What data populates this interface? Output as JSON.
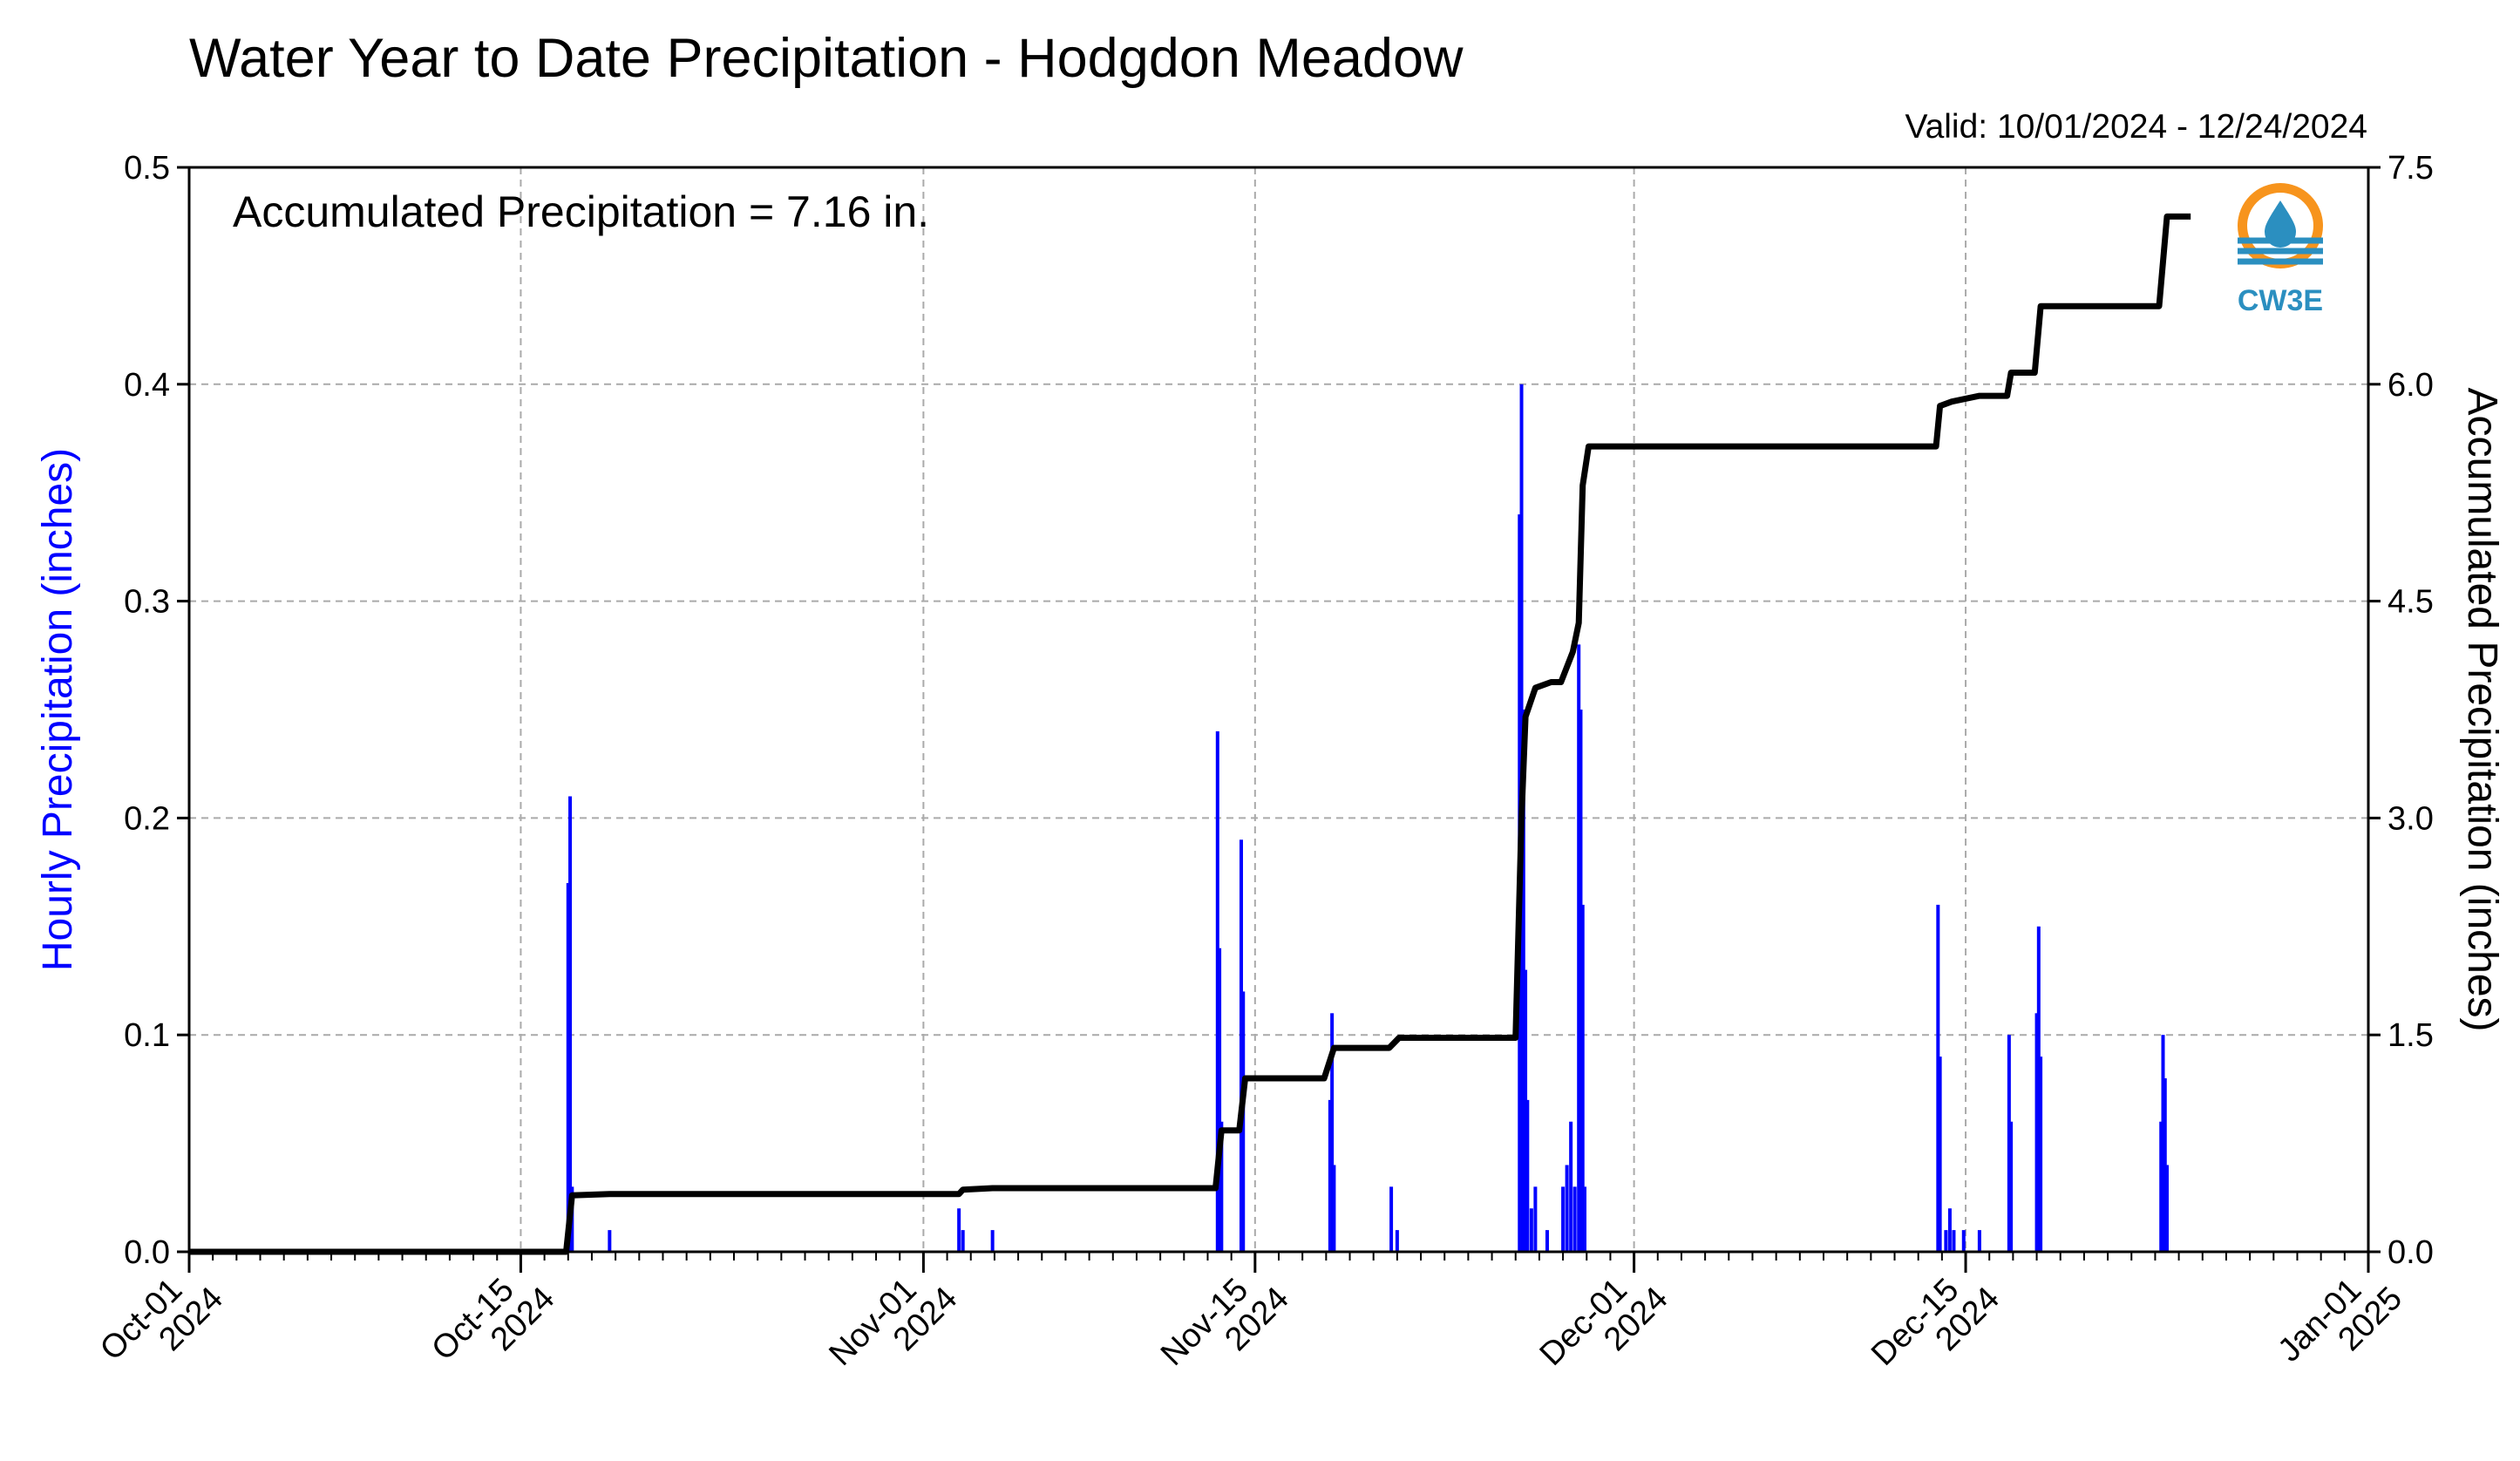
{
  "chart_data": {
    "type": "bar",
    "title": "Water Year to Date Precipitation - Hodgdon Meadow",
    "subtitle": "Valid: 10/01/2024 - 12/24/2024",
    "annotation": "Accumulated Precipitation = 7.16 in.",
    "logo_text": "CW3E",
    "ylabel": "Hourly Precipitation (inches)",
    "y2label": "Accumulated Precipitation (inches)",
    "ylim": [
      0,
      0.5
    ],
    "y2lim": [
      0,
      7.5
    ],
    "xlim": [
      "2024-10-01",
      "2025-01-01"
    ],
    "grid": true,
    "y_ticks": [
      "0.0",
      "0.1",
      "0.2",
      "0.3",
      "0.4",
      "0.5"
    ],
    "y2_ticks": [
      "0.0",
      "1.5",
      "3.0",
      "4.5",
      "6.0",
      "7.5"
    ],
    "x_ticks": [
      {
        "date": "2024-10-01",
        "label1": "Oct-01",
        "label2": "2024"
      },
      {
        "date": "2024-10-15",
        "label1": "Oct-15",
        "label2": "2024"
      },
      {
        "date": "2024-11-01",
        "label1": "Nov-01",
        "label2": "2024"
      },
      {
        "date": "2024-11-15",
        "label1": "Nov-15",
        "label2": "2024"
      },
      {
        "date": "2024-12-01",
        "label1": "Dec-01",
        "label2": "2024"
      },
      {
        "date": "2024-12-15",
        "label1": "Dec-15",
        "label2": "2024"
      },
      {
        "date": "2025-01-01",
        "label1": "Jan-01",
        "label2": "2025"
      }
    ],
    "series": [
      {
        "name": "Hourly Precipitation",
        "type": "bar",
        "color": "#0000ff",
        "points": [
          [
            "2024-10-17 00:00",
            0.17
          ],
          [
            "2024-10-17 02:00",
            0.21
          ],
          [
            "2024-10-17 04:00",
            0.03
          ],
          [
            "2024-10-18 18:00",
            0.01
          ],
          [
            "2024-11-02 12:00",
            0.02
          ],
          [
            "2024-11-02 16:00",
            0.01
          ],
          [
            "2024-11-03 22:00",
            0.01
          ],
          [
            "2024-11-13 10:00",
            0.24
          ],
          [
            "2024-11-13 12:00",
            0.14
          ],
          [
            "2024-11-13 14:00",
            0.06
          ],
          [
            "2024-11-14 10:00",
            0.19
          ],
          [
            "2024-11-14 12:00",
            0.12
          ],
          [
            "2024-11-18 04:00",
            0.07
          ],
          [
            "2024-11-18 06:00",
            0.11
          ],
          [
            "2024-11-18 08:00",
            0.04
          ],
          [
            "2024-11-20 18:00",
            0.03
          ],
          [
            "2024-11-21 00:00",
            0.01
          ],
          [
            "2024-11-26 04:00",
            0.34
          ],
          [
            "2024-11-26 06:00",
            0.4
          ],
          [
            "2024-11-26 08:00",
            0.25
          ],
          [
            "2024-11-26 10:00",
            0.13
          ],
          [
            "2024-11-26 12:00",
            0.07
          ],
          [
            "2024-11-26 16:00",
            0.02
          ],
          [
            "2024-11-26 20:00",
            0.03
          ],
          [
            "2024-11-27 08:00",
            0.01
          ],
          [
            "2024-11-28 00:00",
            0.03
          ],
          [
            "2024-11-28 04:00",
            0.04
          ],
          [
            "2024-11-28 08:00",
            0.06
          ],
          [
            "2024-11-28 12:00",
            0.03
          ],
          [
            "2024-11-28 16:00",
            0.28
          ],
          [
            "2024-11-28 18:00",
            0.25
          ],
          [
            "2024-11-28 20:00",
            0.16
          ],
          [
            "2024-11-28 22:00",
            0.03
          ],
          [
            "2024-12-13 20:00",
            0.16
          ],
          [
            "2024-12-13 22:00",
            0.09
          ],
          [
            "2024-12-14 04:00",
            0.01
          ],
          [
            "2024-12-14 08:00",
            0.02
          ],
          [
            "2024-12-14 12:00",
            0.01
          ],
          [
            "2024-12-14 22:00",
            0.01
          ],
          [
            "2024-12-15 14:00",
            0.01
          ],
          [
            "2024-12-16 20:00",
            0.1
          ],
          [
            "2024-12-16 22:00",
            0.06
          ],
          [
            "2024-12-18 00:00",
            0.11
          ],
          [
            "2024-12-18 02:00",
            0.15
          ],
          [
            "2024-12-18 04:00",
            0.09
          ],
          [
            "2024-12-23 06:00",
            0.06
          ],
          [
            "2024-12-23 08:00",
            0.1
          ],
          [
            "2024-12-23 10:00",
            0.08
          ],
          [
            "2024-12-23 12:00",
            0.04
          ]
        ]
      },
      {
        "name": "Accumulated Precipitation",
        "type": "line",
        "color": "#000000",
        "points": [
          [
            "2024-10-01 00:00",
            0.0
          ],
          [
            "2024-10-16 22:00",
            0.0
          ],
          [
            "2024-10-17 04:00",
            0.39
          ],
          [
            "2024-10-18 18:00",
            0.4
          ],
          [
            "2024-11-02 12:00",
            0.4
          ],
          [
            "2024-11-02 16:00",
            0.43
          ],
          [
            "2024-11-03 22:00",
            0.44
          ],
          [
            "2024-11-13 08:00",
            0.44
          ],
          [
            "2024-11-13 14:00",
            0.84
          ],
          [
            "2024-11-14 08:00",
            0.84
          ],
          [
            "2024-11-14 14:00",
            1.2
          ],
          [
            "2024-11-17 22:00",
            1.2
          ],
          [
            "2024-11-18 08:00",
            1.41
          ],
          [
            "2024-11-20 16:00",
            1.41
          ],
          [
            "2024-11-21 02:00",
            1.48
          ],
          [
            "2024-11-26 00:00",
            1.48
          ],
          [
            "2024-11-26 06:00",
            3.0
          ],
          [
            "2024-11-26 10:00",
            3.7
          ],
          [
            "2024-11-26 20:00",
            3.9
          ],
          [
            "2024-11-27 12:00",
            3.94
          ],
          [
            "2024-11-27 22:00",
            3.94
          ],
          [
            "2024-11-28 10:00",
            4.15
          ],
          [
            "2024-11-28 16:00",
            4.35
          ],
          [
            "2024-11-28 20:00",
            5.3
          ],
          [
            "2024-11-29 02:00",
            5.57
          ],
          [
            "2024-12-13 18:00",
            5.57
          ],
          [
            "2024-12-13 22:00",
            5.85
          ],
          [
            "2024-12-14 10:00",
            5.88
          ],
          [
            "2024-12-15 14:00",
            5.92
          ],
          [
            "2024-12-16 18:00",
            5.92
          ],
          [
            "2024-12-16 22:00",
            6.08
          ],
          [
            "2024-12-17 22:00",
            6.08
          ],
          [
            "2024-12-18 04:00",
            6.54
          ],
          [
            "2024-12-23 04:00",
            6.54
          ],
          [
            "2024-12-23 12:00",
            7.16
          ],
          [
            "2024-12-24 12:00",
            7.16
          ]
        ]
      }
    ]
  }
}
